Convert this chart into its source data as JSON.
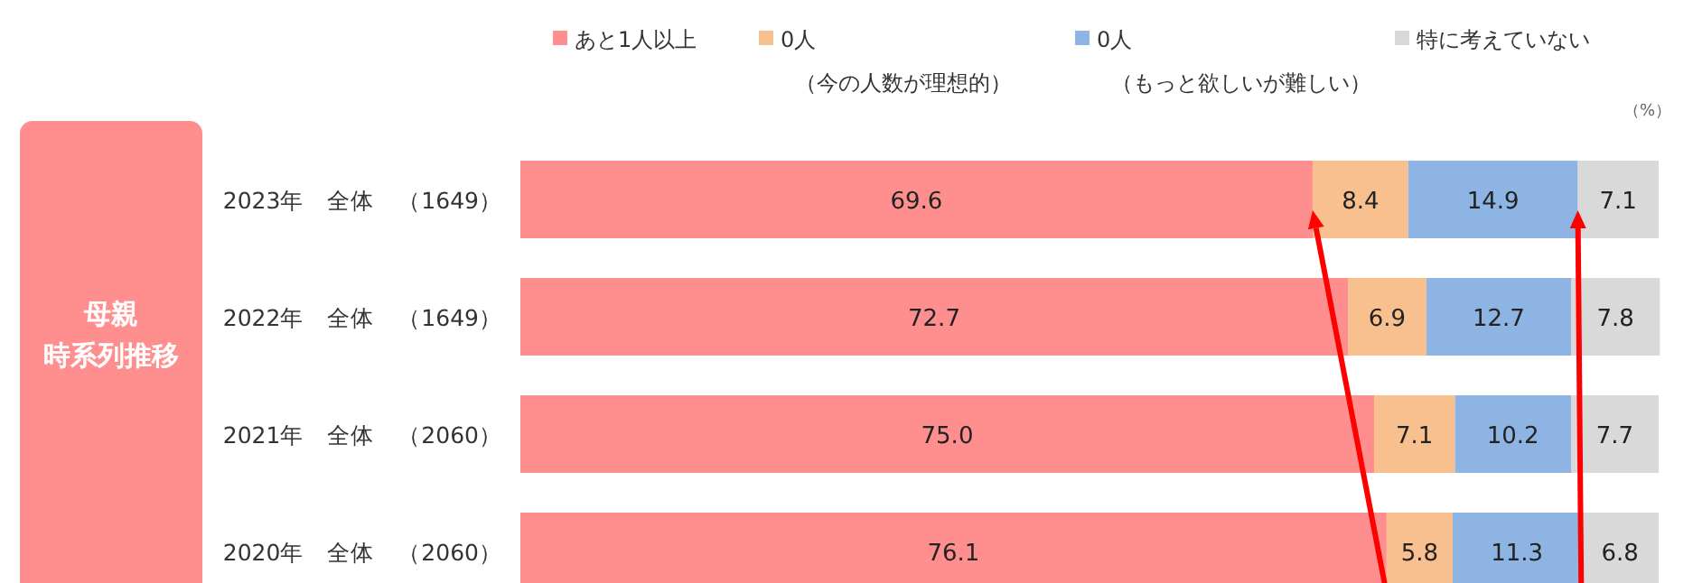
{
  "chart_data": {
    "type": "bar",
    "orientation": "horizontal",
    "stacked": true,
    "title": "母親",
    "subtitle": "時系列推移",
    "categories": [
      "2023年　全体　（1649）",
      "2022年　全体　（1649）",
      "2021年　全体　（2060）",
      "2020年　全体　（2060）"
    ],
    "series": [
      {
        "name": "あと1人以上",
        "color": "#ff8f8f",
        "values": [
          69.6,
          72.7,
          75.0,
          76.1
        ],
        "value_labels": [
          "69.6",
          "72.7",
          "75.0",
          "76.1"
        ]
      },
      {
        "name": "0人（今の人数が理想的）",
        "color": "#f9c08f",
        "values": [
          8.4,
          6.9,
          7.1,
          5.8
        ],
        "value_labels": [
          "8.4",
          "6.9",
          "7.1",
          "5.8"
        ]
      },
      {
        "name": "0人（もっと欲しいが難しい）",
        "color": "#8eb4e3",
        "values": [
          14.9,
          12.7,
          10.2,
          11.3
        ],
        "value_labels": [
          "14.9",
          "12.7",
          "10.2",
          "11.3"
        ]
      },
      {
        "name": "特に考えていない",
        "color": "#d9d9d9",
        "values": [
          7.1,
          7.8,
          7.7,
          6.8
        ],
        "value_labels": [
          "7.1",
          "7.8",
          "7.7",
          "6.8"
        ]
      }
    ],
    "xlim": [
      0,
      100
    ],
    "legend": "top",
    "annotations": [
      "（%）"
    ]
  }
}
